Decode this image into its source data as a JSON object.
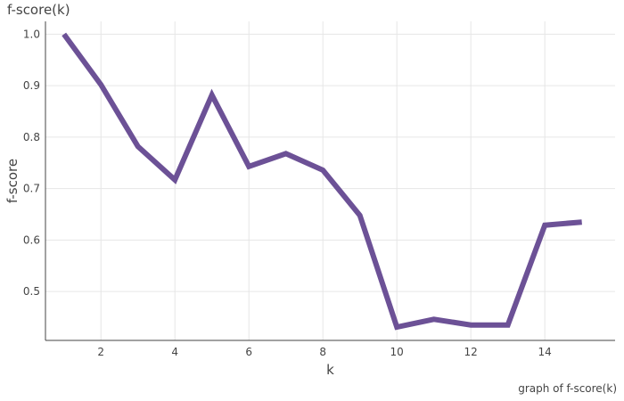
{
  "chart_data": {
    "type": "line",
    "title": "f-score(k)",
    "caption": "graph of f-score(k)",
    "xlabel": "k",
    "ylabel": "f-score",
    "xlim": [
      0.5,
      15.9
    ],
    "ylim": [
      0.405,
      1.025
    ],
    "x_ticks": [
      2,
      4,
      6,
      8,
      10,
      12,
      14
    ],
    "y_ticks": [
      0.5,
      0.6,
      0.7,
      0.8,
      0.9,
      1.0
    ],
    "y_tick_labels": [
      "0.5",
      "0.6",
      "0.7",
      "0.8",
      "0.9",
      "1.0"
    ],
    "grid": true,
    "series": [
      {
        "color": "#6c5196",
        "x": [
          1,
          2,
          3,
          4,
          5,
          6,
          7,
          8,
          9,
          10,
          11,
          12,
          13,
          14,
          15
        ],
        "y": [
          1.0,
          0.902,
          0.782,
          0.717,
          0.882,
          0.743,
          0.768,
          0.736,
          0.648,
          0.431,
          0.446,
          0.435,
          0.435,
          0.629,
          0.635
        ]
      }
    ]
  }
}
